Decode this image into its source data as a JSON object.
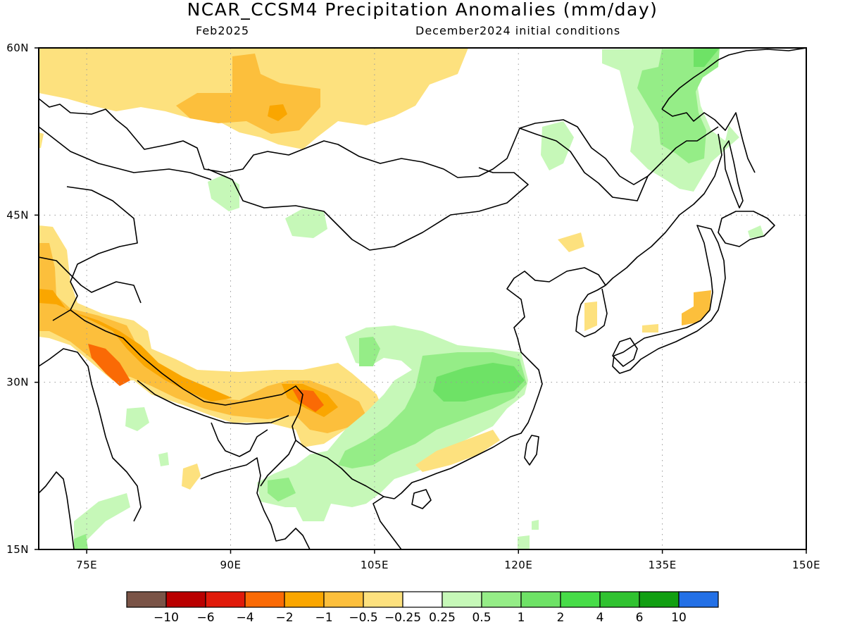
{
  "header": {
    "title": "NCAR_CCSM4 Precipitation Anomalies (mm/day)",
    "valid_month": "Feb2025",
    "init_conditions": "December2024 initial conditions"
  },
  "map": {
    "lon_range": [
      70,
      150
    ],
    "lat_range": [
      15,
      60
    ],
    "lat_ticks": [
      {
        "value": 15,
        "label": "15N"
      },
      {
        "value": 30,
        "label": "30N"
      },
      {
        "value": 45,
        "label": "45N"
      },
      {
        "value": 60,
        "label": "60N"
      }
    ],
    "lon_ticks": [
      {
        "value": 75,
        "label": "75E"
      },
      {
        "value": 90,
        "label": "90E"
      },
      {
        "value": 105,
        "label": "105E"
      },
      {
        "value": 120,
        "label": "120E"
      },
      {
        "value": 135,
        "label": "135E"
      },
      {
        "value": 150,
        "label": "150E"
      }
    ],
    "grid": true,
    "coastline_color": "#000000"
  },
  "colorbar": {
    "colors": [
      "#7a5447",
      "#b90000",
      "#e01a0a",
      "#fa6a05",
      "#faa600",
      "#fcbf3c",
      "#fde17e",
      "#ffffff",
      "#c6f8b8",
      "#95ed87",
      "#6ee266",
      "#47dc48",
      "#30c230",
      "#119f12",
      "#2370e6"
    ],
    "labels": [
      "−10",
      "−6",
      "−4",
      "−2",
      "−1",
      "−0.5",
      "−0.25",
      "0.25",
      "0.5",
      "1",
      "2",
      "4",
      "6",
      "10"
    ]
  },
  "anomaly_colors": {
    "light_yellow": "#fde17e",
    "light_orange": "#fcbf3c",
    "orange": "#faa600",
    "dark_orange": "#fa6a05",
    "light_green": "#c6f8b8",
    "green": "#95ed87",
    "mid_green": "#6ee266"
  }
}
